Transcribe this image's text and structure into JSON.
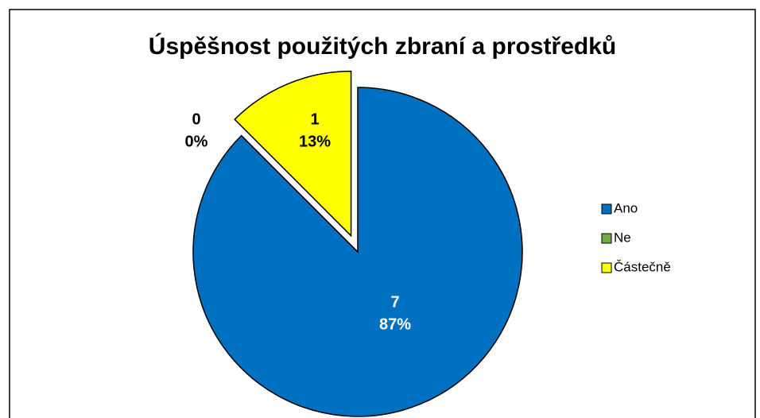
{
  "chart_data": {
    "type": "pie",
    "title": "Úspěšnost použitých zbraní a prostředků",
    "categories": [
      "Ano",
      "Ne",
      "Částečně"
    ],
    "values": [
      7,
      0,
      1
    ],
    "percentages": [
      87,
      0,
      13
    ],
    "percentage_labels": [
      "87%",
      "0%",
      "13%"
    ],
    "colors": [
      "#0070c0",
      "#70ad47",
      "#ffff00"
    ],
    "exploded": [
      false,
      false,
      true
    ],
    "legend": "right"
  }
}
